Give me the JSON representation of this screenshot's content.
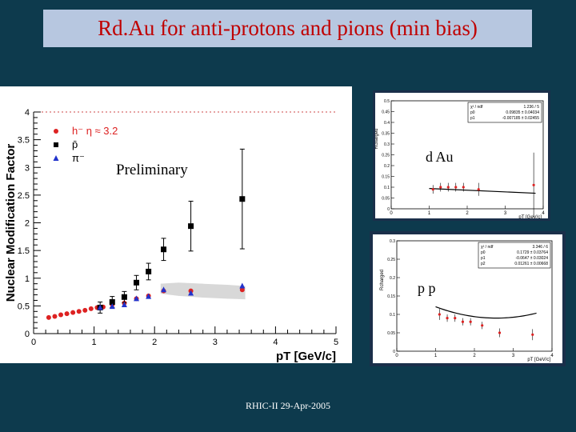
{
  "slide": {
    "title": "Rd.Au for anti-protons and pions (min bias)",
    "footer": "RHIC-II 29-Apr-2005",
    "colors": {
      "background": "#0d3a4d",
      "title_box": "#b7c7e0",
      "title_text": "#c00000"
    }
  },
  "chart_data": [
    {
      "type": "scatter",
      "title": "",
      "xlabel": "pT [GeV/c]",
      "ylabel": "Nuclear Modification Factor",
      "xlim": [
        0,
        5
      ],
      "ylim": [
        0,
        4
      ],
      "xticks": [
        "0",
        "1",
        "2",
        "3",
        "4",
        "5"
      ],
      "yticks": [
        "0",
        "0.5",
        "1",
        "1.5",
        "2",
        "2.5",
        "3",
        "3.5",
        "4"
      ],
      "annotation": "Preliminary",
      "legend_placement": "top-left",
      "series": [
        {
          "name": "h⁻ η ≈ 3.2",
          "marker": "circle",
          "color": "#dd2222",
          "x": [
            0.25,
            0.35,
            0.45,
            0.55,
            0.65,
            0.75,
            0.85,
            0.95,
            1.05,
            1.15,
            1.3,
            1.5,
            1.7,
            1.9,
            2.15,
            2.6,
            3.45
          ],
          "y": [
            0.29,
            0.31,
            0.34,
            0.36,
            0.38,
            0.4,
            0.42,
            0.45,
            0.47,
            0.48,
            0.52,
            0.55,
            0.63,
            0.68,
            0.77,
            0.77,
            0.79
          ]
        },
        {
          "name": "p̄",
          "marker": "square",
          "color": "#000000",
          "x": [
            1.1,
            1.3,
            1.5,
            1.7,
            1.9,
            2.15,
            2.6,
            3.45
          ],
          "y": [
            0.47,
            0.57,
            0.66,
            0.92,
            1.12,
            1.52,
            1.94,
            2.43
          ],
          "yerr": [
            0.1,
            0.1,
            0.1,
            0.13,
            0.15,
            0.2,
            0.45,
            0.9
          ]
        },
        {
          "name": "π⁻",
          "marker": "triangle",
          "color": "#2233cc",
          "x": [
            1.1,
            1.3,
            1.5,
            1.7,
            1.9,
            2.15,
            2.6,
            3.45
          ],
          "y": [
            0.47,
            0.49,
            0.52,
            0.63,
            0.67,
            0.79,
            0.73,
            0.86
          ]
        }
      ],
      "band": {
        "x": [
          2.1,
          2.4,
          2.8,
          3.2,
          3.5
        ],
        "y_low": [
          0.72,
          0.68,
          0.65,
          0.63,
          0.62
        ],
        "y_high": [
          0.9,
          0.92,
          0.9,
          0.88,
          0.86
        ]
      }
    },
    {
      "type": "scatter",
      "label": "d Au",
      "xlabel": "pT [GeV/c]",
      "ylabel": "Rcharged",
      "xlim": [
        0,
        4
      ],
      "ylim": [
        0,
        0.5
      ],
      "xticks": [
        "0",
        "1",
        "2",
        "3",
        "4"
      ],
      "yticks": [
        "0",
        "0.05",
        "0.1",
        "0.15",
        "0.2",
        "0.25",
        "0.3",
        "0.35",
        "0.4",
        "0.45",
        "0.5"
      ],
      "fit_box": [
        {
          "param": "χ² / ndf",
          "value": "1.236 / 5"
        },
        {
          "param": "p0",
          "value": "0.09835 ± 0.04034"
        },
        {
          "param": "p1",
          "value": "-0.007185 ± 0.02455"
        }
      ],
      "points": {
        "x": [
          1.1,
          1.3,
          1.5,
          1.7,
          1.9,
          2.3,
          3.75
        ],
        "y": [
          0.09,
          0.1,
          0.1,
          0.1,
          0.1,
          0.09,
          0.11
        ],
        "yerr": [
          0.02,
          0.02,
          0.02,
          0.02,
          0.02,
          0.03,
          0.15
        ]
      },
      "fit_line": {
        "x": [
          1.0,
          3.8
        ],
        "y": [
          0.094,
          0.072
        ]
      }
    },
    {
      "type": "scatter",
      "label": "p p",
      "xlabel": "pT [GeV/c]",
      "ylabel": "Rcharged",
      "xlim": [
        0,
        4
      ],
      "ylim": [
        0,
        0.3
      ],
      "xticks": [
        "0",
        "1",
        "2",
        "3",
        "4"
      ],
      "yticks": [
        "0",
        "0.05",
        "0.1",
        "0.15",
        "0.2",
        "0.25",
        "0.3"
      ],
      "fit_box": [
        {
          "param": "χ² / ndf",
          "value": "3.346 / 6"
        },
        {
          "param": "p0",
          "value": "0.1729 ± 0.03764"
        },
        {
          "param": "p1",
          "value": "-0.0647 ± 0.03024"
        },
        {
          "param": "p2",
          "value": "0.01261 ± 0.00668"
        }
      ],
      "points": {
        "x": [
          1.1,
          1.3,
          1.5,
          1.7,
          1.9,
          2.2,
          2.65,
          3.5
        ],
        "y": [
          0.1,
          0.09,
          0.09,
          0.08,
          0.08,
          0.07,
          0.05,
          0.045
        ],
        "yerr": [
          0.015,
          0.01,
          0.01,
          0.01,
          0.01,
          0.01,
          0.012,
          0.015
        ]
      },
      "fit_curve": {
        "p0": 0.1729,
        "p1": -0.0647,
        "p2": 0.01261,
        "x_from": 1.0,
        "x_to": 3.6
      }
    }
  ]
}
